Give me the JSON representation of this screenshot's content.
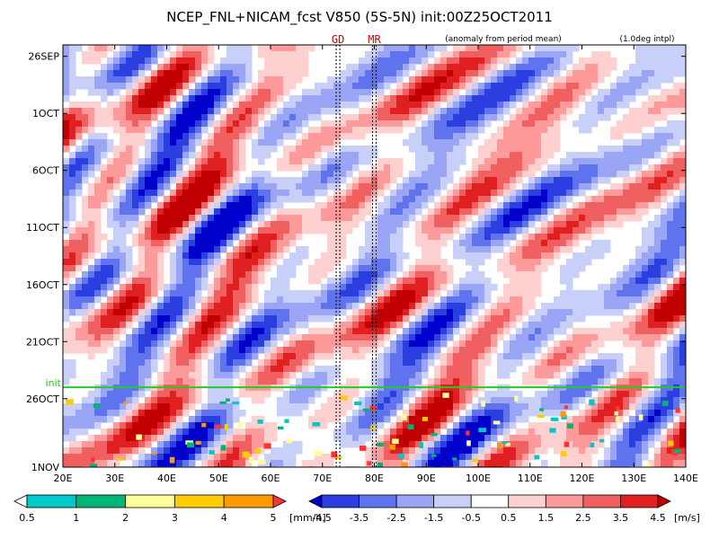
{
  "chart_data": {
    "type": "heatmap",
    "title": "NCEP_FNL+NICAM_fcst V850 (5S-5N) init:00Z25OCT2011",
    "note_anomaly": "(anomaly from period mean)",
    "note_interp": "(1.0deg intpl)",
    "x_ticks": [
      "20E",
      "30E",
      "40E",
      "50E",
      "60E",
      "70E",
      "80E",
      "90E",
      "100E",
      "110E",
      "120E",
      "130E",
      "140E"
    ],
    "x_values": [
      20,
      30,
      40,
      50,
      60,
      70,
      80,
      90,
      100,
      110,
      120,
      130,
      140
    ],
    "xlim": [
      20,
      140
    ],
    "y_ticks": [
      "26SEP",
      "1OCT",
      "6OCT",
      "11OCT",
      "16OCT",
      "21OCT",
      "26OCT",
      "1NOV"
    ],
    "y_days_since_26sep": [
      0,
      5,
      10,
      15,
      20,
      25,
      30,
      36
    ],
    "ylim_days": [
      -1,
      36
    ],
    "init_label": "init",
    "init_day": 29,
    "markers": [
      {
        "label": "GD",
        "lon": 73
      },
      {
        "label": "MR",
        "lon": 80
      }
    ],
    "colorbar_precip": {
      "unit": "[mm/h]",
      "ticks": [
        "0.5",
        "1",
        "2",
        "3",
        "4",
        "5"
      ],
      "colors": [
        "#ffffff",
        "#00c8c8",
        "#00b478",
        "#ffff99",
        "#ffcc00",
        "#ff9900",
        "#ff3333"
      ]
    },
    "colorbar_wind": {
      "unit": "[m/s]",
      "ticks": [
        "-4.5",
        "-3.5",
        "-2.5",
        "-1.5",
        "-0.5",
        "0.5",
        "1.5",
        "2.5",
        "3.5",
        "4.5"
      ],
      "colors": [
        "#0000cc",
        "#2b3fe0",
        "#5f73ee",
        "#9aa6f5",
        "#c8cff9",
        "#ffffff",
        "#ffd0d0",
        "#ff9a9a",
        "#f06060",
        "#e02020",
        "#c00000"
      ]
    }
  }
}
